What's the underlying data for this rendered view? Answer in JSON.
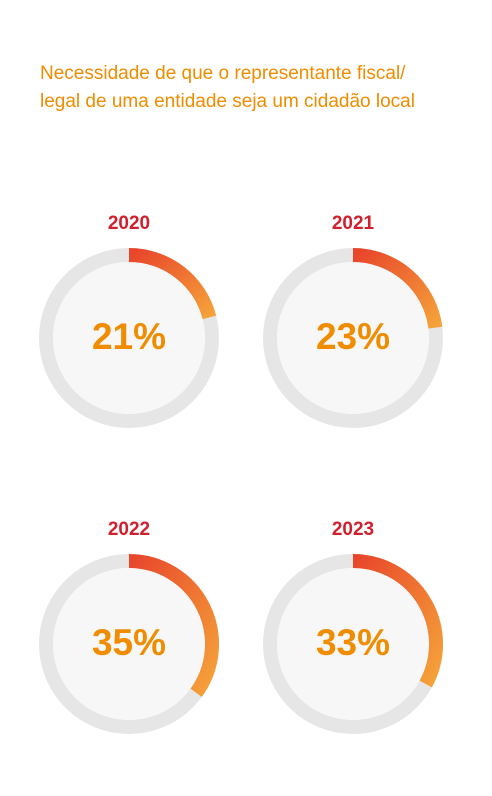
{
  "title_lines": [
    "Necessidade de que o representante fiscal/",
    "legal de uma entidade seja um cidadão local"
  ],
  "colors": {
    "title": "#f08c00",
    "year": "#d0202e",
    "value": "#f08c00",
    "arc_start": "#e8452a",
    "arc_end": "#f5a33a",
    "track": "#e6e6e6",
    "inner": "#f7f7f7"
  },
  "chart_data": [
    {
      "type": "pie",
      "label": "2020",
      "value": 21,
      "value_label": "21%"
    },
    {
      "type": "pie",
      "label": "2021",
      "value": 23,
      "value_label": "23%"
    },
    {
      "type": "pie",
      "label": "2022",
      "value": 35,
      "value_label": "35%"
    },
    {
      "type": "pie",
      "label": "2023",
      "value": 33,
      "value_label": "33%"
    }
  ]
}
